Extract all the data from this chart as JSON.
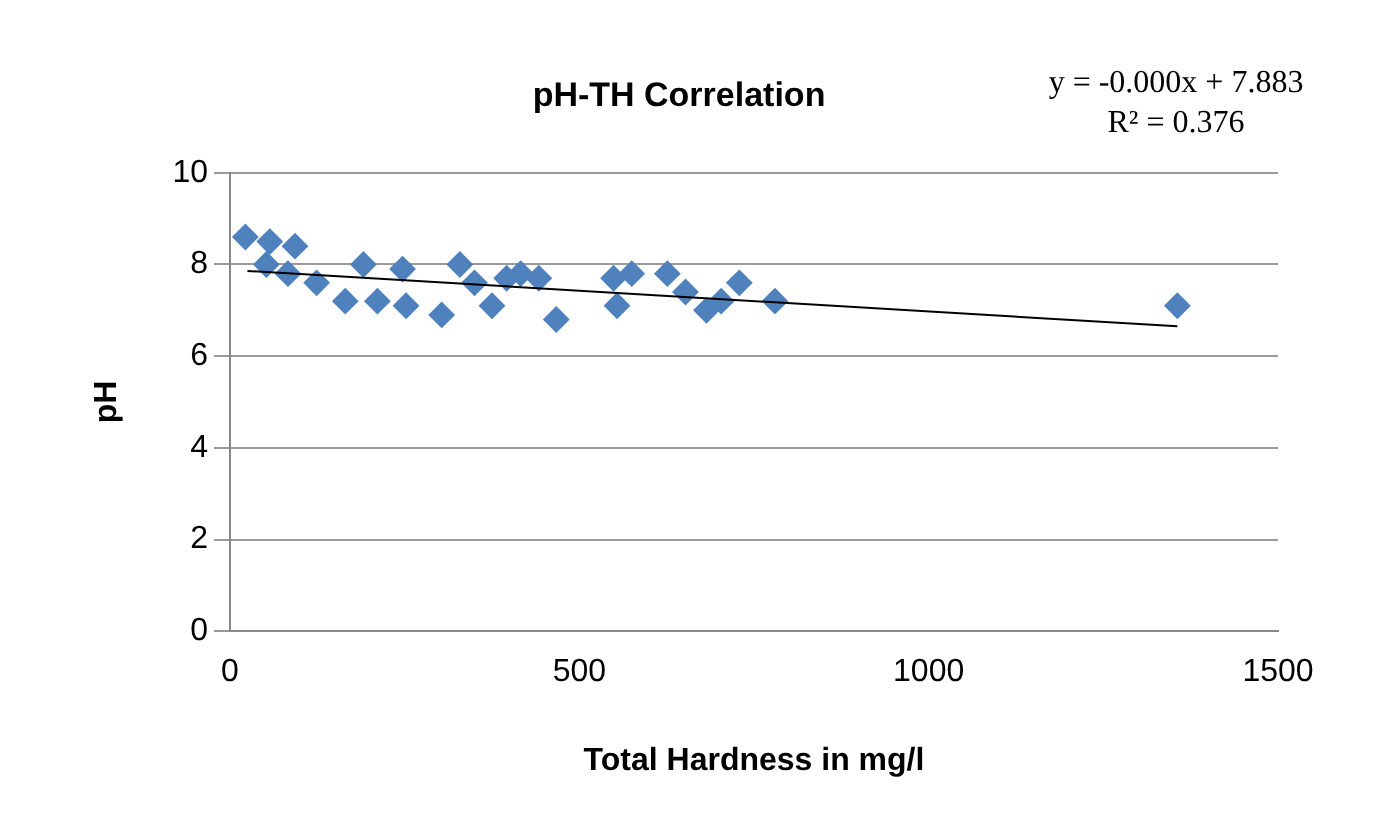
{
  "chart_data": {
    "type": "scatter",
    "title": "pH-TH Correlation",
    "xlabel": "Total Hardness in mg/l",
    "ylabel": "pH",
    "annotations": [
      "y = -0.000x + 7.883",
      "R² = 0.376"
    ],
    "xlim": [
      0,
      1500
    ],
    "xticks": [
      0,
      500,
      1000,
      1500
    ],
    "ylim": [
      0,
      10
    ],
    "yticks": [
      0,
      2,
      4,
      6,
      8,
      10
    ],
    "grid": "y",
    "legend": false,
    "marker": "diamond",
    "series": [
      {
        "color": "#4f81bd",
        "x": [
          22,
          57,
          93,
          52,
          83,
          124,
          165,
          191,
          211,
          247,
          252,
          303,
          329,
          350,
          375,
          396,
          416,
          442,
          467,
          549,
          554,
          575,
          626,
          652,
          682,
          703,
          729,
          780,
          1356
        ],
        "values": [
          8.6,
          8.5,
          8.4,
          8.0,
          7.8,
          7.6,
          7.2,
          8.0,
          7.2,
          7.9,
          7.1,
          6.9,
          8.0,
          7.6,
          7.1,
          7.7,
          7.8,
          7.7,
          6.8,
          7.7,
          7.1,
          7.8,
          7.8,
          7.4,
          7.0,
          7.2,
          7.6,
          7.2,
          7.1
        ]
      },
      {
        "type": "line",
        "color": "#000000",
        "marker": "none",
        "x": [
          25,
          1356
        ],
        "values": [
          7.86,
          6.65
        ]
      }
    ]
  }
}
